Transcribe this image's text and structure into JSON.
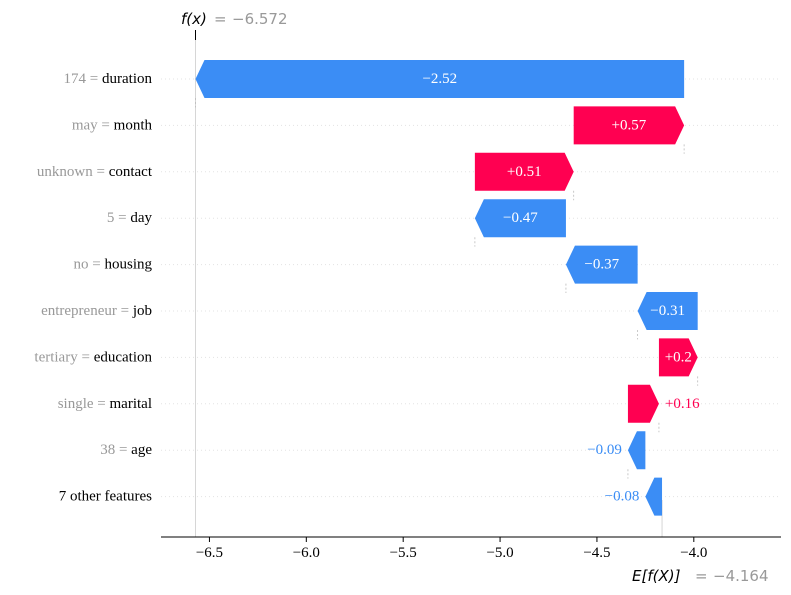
{
  "chart_data": {
    "type": "waterfall",
    "fx_label": "f(x)",
    "fx_value": "−6.572",
    "efx_label": "E[f(X)]",
    "efx_value": "−4.164",
    "base_value": -4.164,
    "output_value": -6.572,
    "xlim": [
      -6.75,
      -3.55
    ],
    "x_ticks": [
      {
        "value": -6.5,
        "label": "−6.5"
      },
      {
        "value": -6.0,
        "label": "−6.0"
      },
      {
        "value": -5.5,
        "label": "−5.5"
      },
      {
        "value": -5.0,
        "label": "−5.0"
      },
      {
        "value": -4.5,
        "label": "−4.5"
      },
      {
        "value": -4.0,
        "label": "−4.0"
      }
    ],
    "features": [
      {
        "value": "174",
        "name": "duration",
        "start": -4.05,
        "end": -6.572,
        "label": "−2.52",
        "label_inside": true
      },
      {
        "value": "may",
        "name": "month",
        "start": -4.62,
        "end": -4.05,
        "label": "+0.57",
        "label_inside": true
      },
      {
        "value": "unknown",
        "name": "contact",
        "start": -5.13,
        "end": -4.62,
        "label": "+0.51",
        "label_inside": true
      },
      {
        "value": "5",
        "name": "day",
        "start": -4.66,
        "end": -5.13,
        "label": "−0.47",
        "label_inside": true
      },
      {
        "value": "no",
        "name": "housing",
        "start": -4.29,
        "end": -4.66,
        "label": "−0.37",
        "label_inside": true
      },
      {
        "value": "entrepreneur",
        "name": "job",
        "start": -3.98,
        "end": -4.29,
        "label": "−0.31",
        "label_inside": true
      },
      {
        "value": "tertiary",
        "name": "education",
        "start": -4.18,
        "end": -3.98,
        "label": "+0.2",
        "label_inside": true
      },
      {
        "value": "single",
        "name": "marital",
        "start": -4.34,
        "end": -4.18,
        "label": "+0.16",
        "label_inside": false
      },
      {
        "value": "38",
        "name": "age",
        "start": -4.25,
        "end": -4.34,
        "label": "−0.09",
        "label_inside": false
      },
      {
        "value": "",
        "name": "7 other features",
        "start": -4.164,
        "end": -4.25,
        "label": "−0.08",
        "label_inside": false
      }
    ],
    "colors": {
      "positive": "#ff0051",
      "negative": "#3b8df5",
      "axis": "#000000",
      "muted": "#999999",
      "grid": "#cccccc"
    }
  }
}
